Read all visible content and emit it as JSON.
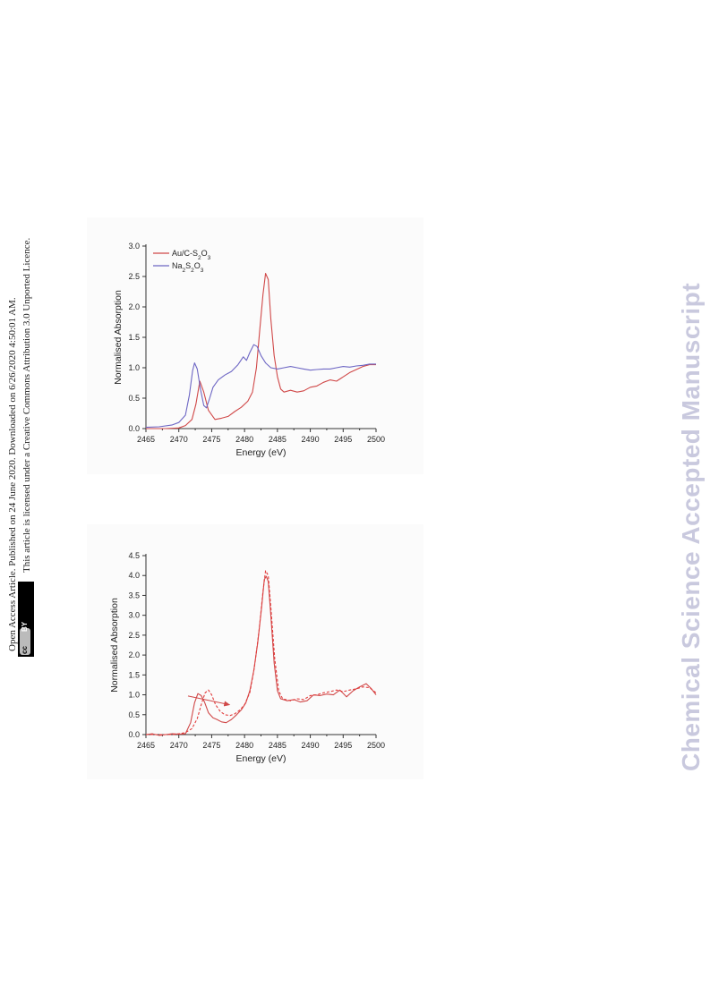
{
  "sidebar": {
    "line1": "Open Access Article. Published on 24 June 2020. Downloaded on 6/26/2020 4:50:01 AM.",
    "line2": "This article is licensed under a Creative Commons Attribution 3.0 Unported Licence.",
    "badge_cc": "cc",
    "badge_by": "BY"
  },
  "watermark": "Chemical Science Accepted Manuscript",
  "colors": {
    "red": "#d04848",
    "blue": "#6d66c4",
    "red_dashed": "#e23b3b",
    "axis": "#333333"
  },
  "chart_data": [
    {
      "type": "line",
      "xlabel": "Energy (eV)",
      "ylabel": "Normalised Absorption",
      "xlim": [
        2465,
        2500
      ],
      "ylim": [
        0,
        3.0
      ],
      "xticks": [
        2465,
        2470,
        2475,
        2480,
        2485,
        2490,
        2495,
        2500
      ],
      "yticks": [
        0.0,
        0.5,
        1.0,
        1.5,
        2.0,
        2.5,
        3.0
      ],
      "legend": "top-left",
      "series": [
        {
          "name": "Au/C-S2O3",
          "name_main": "Au/C-S",
          "name_sub1": "2",
          "name_mid": "O",
          "name_sub2": "3",
          "color": "#d04848",
          "style": "solid",
          "points": [
            [
              2465,
              0.0
            ],
            [
              2468,
              0.0
            ],
            [
              2470,
              0.01
            ],
            [
              2471,
              0.05
            ],
            [
              2472,
              0.15
            ],
            [
              2472.6,
              0.4
            ],
            [
              2473.2,
              0.78
            ],
            [
              2473.8,
              0.6
            ],
            [
              2474.5,
              0.3
            ],
            [
              2475.5,
              0.15
            ],
            [
              2476.5,
              0.17
            ],
            [
              2477.5,
              0.2
            ],
            [
              2478.5,
              0.28
            ],
            [
              2479.5,
              0.35
            ],
            [
              2480.5,
              0.45
            ],
            [
              2481.2,
              0.6
            ],
            [
              2481.8,
              1.0
            ],
            [
              2482.3,
              1.6
            ],
            [
              2482.8,
              2.2
            ],
            [
              2483.2,
              2.55
            ],
            [
              2483.6,
              2.45
            ],
            [
              2484.0,
              1.8
            ],
            [
              2484.5,
              1.2
            ],
            [
              2485.0,
              0.85
            ],
            [
              2485.5,
              0.65
            ],
            [
              2486.0,
              0.6
            ],
            [
              2487.0,
              0.63
            ],
            [
              2488.0,
              0.6
            ],
            [
              2489.0,
              0.62
            ],
            [
              2490.0,
              0.68
            ],
            [
              2491.0,
              0.7
            ],
            [
              2492.0,
              0.76
            ],
            [
              2493.0,
              0.8
            ],
            [
              2494.0,
              0.78
            ],
            [
              2495.0,
              0.85
            ],
            [
              2496.0,
              0.92
            ],
            [
              2497.0,
              0.97
            ],
            [
              2498.0,
              1.02
            ],
            [
              2499.0,
              1.05
            ],
            [
              2500.0,
              1.05
            ]
          ]
        },
        {
          "name": "Na2S2O3",
          "name_main": "Na",
          "name_sub1": "2",
          "name_mid": "S",
          "name_sub2": "2",
          "name_end": "O",
          "name_sub3": "3",
          "color": "#6d66c4",
          "style": "solid",
          "points": [
            [
              2465,
              0.02
            ],
            [
              2467,
              0.03
            ],
            [
              2469,
              0.06
            ],
            [
              2470,
              0.1
            ],
            [
              2471,
              0.22
            ],
            [
              2471.6,
              0.55
            ],
            [
              2472.1,
              0.95
            ],
            [
              2472.4,
              1.08
            ],
            [
              2472.8,
              0.98
            ],
            [
              2473.3,
              0.65
            ],
            [
              2473.8,
              0.38
            ],
            [
              2474.2,
              0.34
            ],
            [
              2474.7,
              0.5
            ],
            [
              2475.2,
              0.68
            ],
            [
              2476.0,
              0.8
            ],
            [
              2477.0,
              0.88
            ],
            [
              2478.0,
              0.94
            ],
            [
              2479.0,
              1.05
            ],
            [
              2479.8,
              1.18
            ],
            [
              2480.3,
              1.12
            ],
            [
              2480.8,
              1.25
            ],
            [
              2481.4,
              1.38
            ],
            [
              2481.9,
              1.35
            ],
            [
              2482.5,
              1.2
            ],
            [
              2483.2,
              1.08
            ],
            [
              2484.0,
              1.0
            ],
            [
              2485.0,
              0.98
            ],
            [
              2486.0,
              1.0
            ],
            [
              2487.0,
              1.02
            ],
            [
              2488.0,
              1.0
            ],
            [
              2489.0,
              0.98
            ],
            [
              2490.0,
              0.96
            ],
            [
              2491.0,
              0.97
            ],
            [
              2492.0,
              0.98
            ],
            [
              2493.0,
              0.98
            ],
            [
              2494.0,
              1.0
            ],
            [
              2495.0,
              1.02
            ],
            [
              2496.0,
              1.01
            ],
            [
              2497.0,
              1.03
            ],
            [
              2498.0,
              1.04
            ],
            [
              2499.0,
              1.06
            ],
            [
              2500.0,
              1.06
            ]
          ]
        }
      ]
    },
    {
      "type": "line",
      "xlabel": "Energy (eV)",
      "ylabel": "Normalised Absorption",
      "xlim": [
        2465,
        2500
      ],
      "ylim": [
        0,
        4.5
      ],
      "xticks": [
        2465,
        2470,
        2475,
        2480,
        2485,
        2490,
        2495,
        2500
      ],
      "yticks": [
        0.0,
        0.5,
        1.0,
        1.5,
        2.0,
        2.5,
        3.0,
        3.5,
        4.0,
        4.5
      ],
      "series": [
        {
          "color": "#d04848",
          "style": "solid",
          "points": [
            [
              2465,
              0.0
            ],
            [
              2466,
              0.02
            ],
            [
              2467,
              -0.02
            ],
            [
              2468,
              0.0
            ],
            [
              2469,
              0.02
            ],
            [
              2470,
              0.01
            ],
            [
              2471,
              0.02
            ],
            [
              2471.8,
              0.3
            ],
            [
              2472.4,
              0.8
            ],
            [
              2472.9,
              1.03
            ],
            [
              2473.4,
              0.98
            ],
            [
              2473.9,
              0.82
            ],
            [
              2474.5,
              0.55
            ],
            [
              2475.2,
              0.42
            ],
            [
              2475.8,
              0.38
            ],
            [
              2476.5,
              0.32
            ],
            [
              2477.2,
              0.3
            ],
            [
              2478.0,
              0.38
            ],
            [
              2478.8,
              0.5
            ],
            [
              2479.5,
              0.62
            ],
            [
              2480.2,
              0.8
            ],
            [
              2480.8,
              1.1
            ],
            [
              2481.4,
              1.6
            ],
            [
              2482.0,
              2.3
            ],
            [
              2482.6,
              3.2
            ],
            [
              2483.0,
              3.9
            ],
            [
              2483.3,
              3.98
            ],
            [
              2483.6,
              3.85
            ],
            [
              2484.0,
              3.0
            ],
            [
              2484.5,
              1.8
            ],
            [
              2485.0,
              1.1
            ],
            [
              2485.5,
              0.9
            ],
            [
              2486.5,
              0.85
            ],
            [
              2487.5,
              0.88
            ],
            [
              2488.5,
              0.82
            ],
            [
              2489.5,
              0.85
            ],
            [
              2490.5,
              1.0
            ],
            [
              2491.5,
              0.98
            ],
            [
              2492.5,
              1.02
            ],
            [
              2493.5,
              1.0
            ],
            [
              2494.5,
              1.12
            ],
            [
              2495.5,
              0.95
            ],
            [
              2496.5,
              1.1
            ],
            [
              2497.5,
              1.2
            ],
            [
              2498.5,
              1.28
            ],
            [
              2499.3,
              1.15
            ],
            [
              2500.0,
              1.0
            ]
          ]
        },
        {
          "color": "#e23b3b",
          "style": "dashed",
          "points": [
            [
              2465,
              0.0
            ],
            [
              2467,
              0.0
            ],
            [
              2469,
              0.0
            ],
            [
              2470,
              0.02
            ],
            [
              2471,
              0.05
            ],
            [
              2472,
              0.15
            ],
            [
              2472.8,
              0.4
            ],
            [
              2473.5,
              0.8
            ],
            [
              2474.0,
              1.05
            ],
            [
              2474.5,
              1.12
            ],
            [
              2475.0,
              1.0
            ],
            [
              2475.6,
              0.75
            ],
            [
              2476.3,
              0.58
            ],
            [
              2477.0,
              0.5
            ],
            [
              2477.8,
              0.48
            ],
            [
              2478.5,
              0.52
            ],
            [
              2479.3,
              0.62
            ],
            [
              2480.0,
              0.75
            ],
            [
              2480.8,
              1.05
            ],
            [
              2481.5,
              1.7
            ],
            [
              2482.2,
              2.6
            ],
            [
              2482.8,
              3.6
            ],
            [
              2483.2,
              4.12
            ],
            [
              2483.6,
              4.0
            ],
            [
              2484.0,
              3.2
            ],
            [
              2484.6,
              1.9
            ],
            [
              2485.2,
              1.1
            ],
            [
              2485.8,
              0.9
            ],
            [
              2487.0,
              0.85
            ],
            [
              2488.0,
              0.9
            ],
            [
              2489.0,
              0.88
            ],
            [
              2490.0,
              0.98
            ],
            [
              2491.0,
              1.0
            ],
            [
              2492.0,
              1.05
            ],
            [
              2493.0,
              1.08
            ],
            [
              2494.0,
              1.12
            ],
            [
              2495.0,
              1.08
            ],
            [
              2496.0,
              1.12
            ],
            [
              2497.0,
              1.15
            ],
            [
              2498.0,
              1.2
            ],
            [
              2499.0,
              1.18
            ],
            [
              2500.0,
              1.05
            ]
          ]
        }
      ]
    }
  ]
}
